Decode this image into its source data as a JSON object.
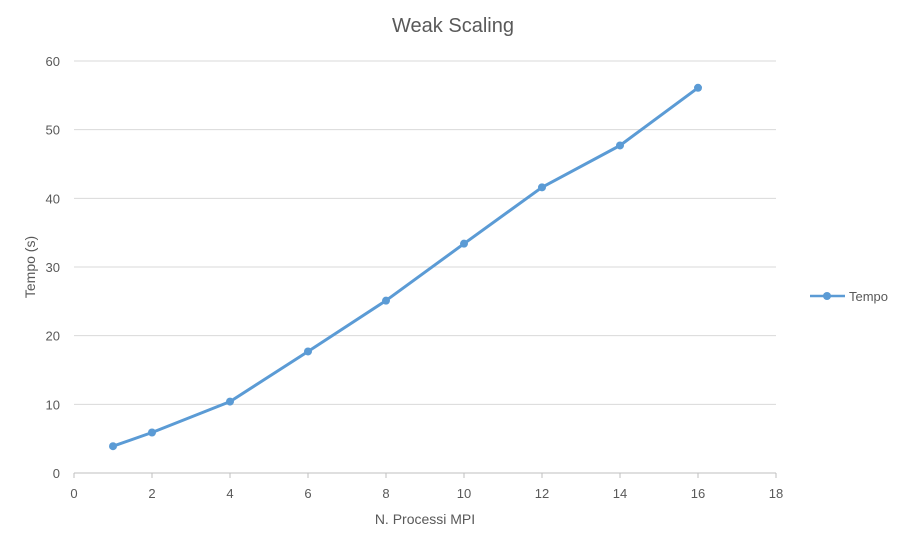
{
  "chart_data": {
    "type": "line",
    "title": "Weak Scaling",
    "xlabel": "N. Processi MPI",
    "ylabel": "Tempo (s)",
    "xlim": [
      0,
      18
    ],
    "ylim": [
      0,
      60
    ],
    "xticks": [
      0,
      2,
      4,
      6,
      8,
      10,
      12,
      14,
      16,
      18
    ],
    "yticks": [
      0,
      10,
      20,
      30,
      40,
      50,
      60
    ],
    "xtick_labels": [
      "0",
      "2",
      "4",
      "6",
      "8",
      "10",
      "12",
      "14",
      "16",
      "18"
    ],
    "ytick_labels": [
      "0",
      "10",
      "20",
      "30",
      "40",
      "50",
      "60"
    ],
    "grid": "horizontal",
    "legend_position": "right",
    "series": [
      {
        "name": "Tempo",
        "color": "#5b9bd5",
        "marker": "circle",
        "x": [
          1,
          2,
          4,
          6,
          8,
          10,
          12,
          14,
          16
        ],
        "y": [
          3.9,
          5.9,
          10.4,
          17.7,
          25.1,
          33.4,
          41.6,
          47.7,
          56.1
        ]
      }
    ]
  }
}
